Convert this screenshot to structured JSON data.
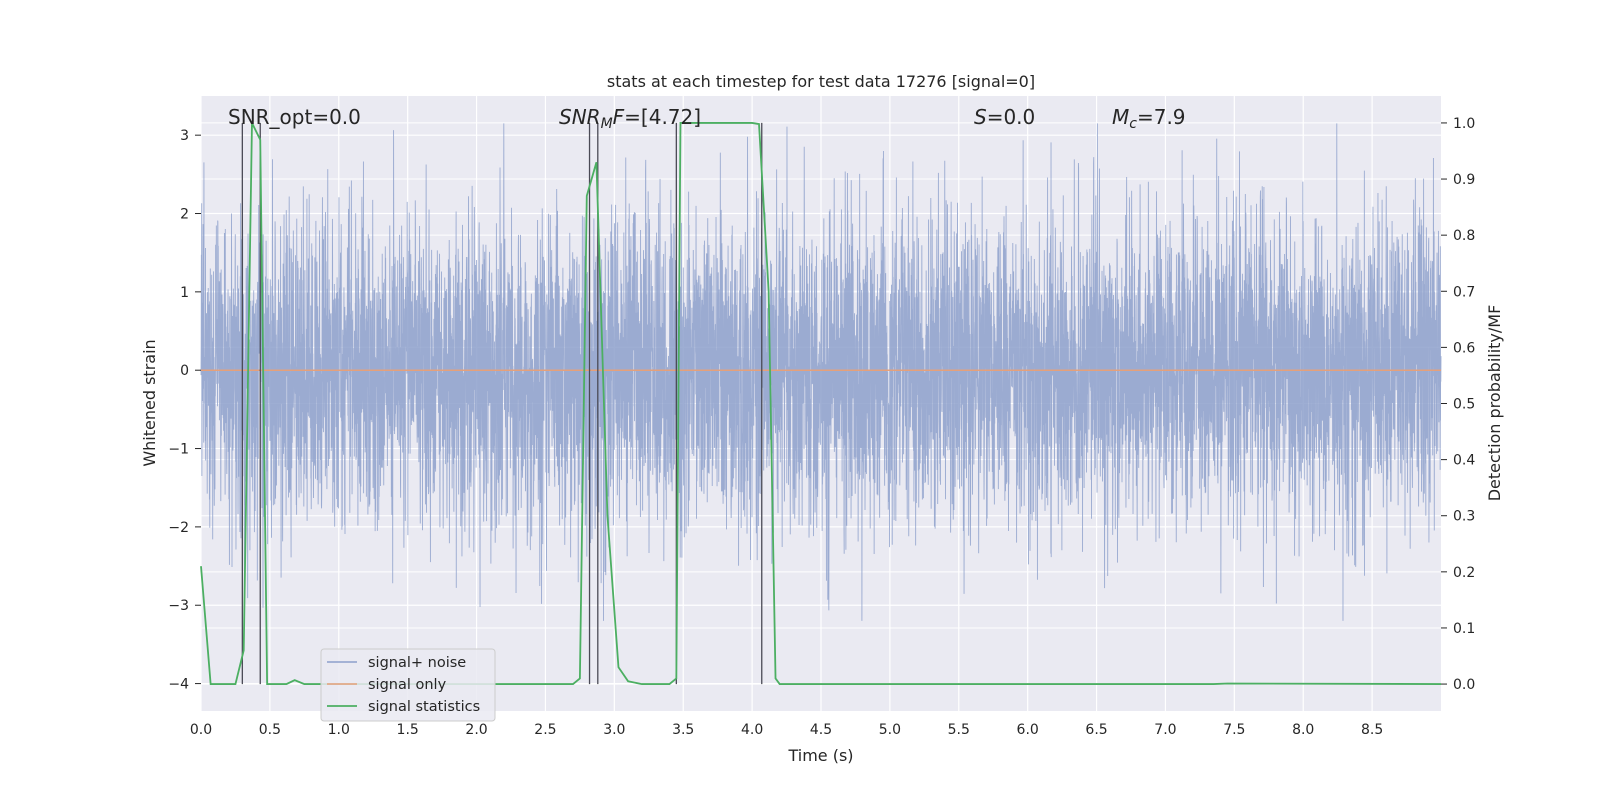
{
  "chart_data": {
    "type": "line",
    "title": "stats at each timestep for test data 17276 [signal=0]",
    "xlabel": "Time (s)",
    "ylabel": "Whitened strain",
    "y2label": "Detection probability/MF",
    "xlim": [
      0.0,
      9.0
    ],
    "ylim": [
      -4.35,
      3.5
    ],
    "y2lim": [
      -0.048,
      1.048
    ],
    "x_ticks": [
      "0.0",
      "0.5",
      "1.0",
      "1.5",
      "2.0",
      "2.5",
      "3.0",
      "3.5",
      "4.0",
      "4.5",
      "5.0",
      "5.5",
      "6.0",
      "6.5",
      "7.0",
      "7.5",
      "8.0",
      "8.5"
    ],
    "y_ticks": [
      "−4",
      "−3",
      "−2",
      "−1",
      "0",
      "1",
      "2",
      "3"
    ],
    "y2_ticks": [
      "0.0",
      "0.1",
      "0.2",
      "0.3",
      "0.4",
      "0.5",
      "0.6",
      "0.7",
      "0.8",
      "0.9",
      "1.0"
    ],
    "grid": true,
    "legend_position": "lower-left",
    "series": [
      {
        "name": "signal+ noise",
        "color": "#8da0cb",
        "style": "dense noise, std ≈ 1, range ≈ ±3"
      },
      {
        "name": "signal only",
        "color": "#e5a07a",
        "x": [
          0.0,
          9.0
        ],
        "values": [
          0.0,
          0.0
        ]
      },
      {
        "name": "signal statistics",
        "color": "#4caf62",
        "axis": "right",
        "x": [
          0.0,
          0.07,
          0.25,
          0.31,
          0.37,
          0.43,
          0.48,
          0.5,
          0.62,
          0.68,
          0.75,
          0.85,
          2.7,
          2.75,
          2.8,
          2.87,
          2.95,
          3.03,
          3.1,
          3.2,
          3.4,
          3.45,
          3.48,
          3.52,
          4.0,
          4.05,
          4.12,
          4.17,
          4.2,
          7.35,
          7.45,
          9.0
        ],
        "values": [
          0.21,
          0.0,
          0.0,
          0.06,
          1.0,
          0.97,
          0.0,
          0.0,
          0.0,
          0.007,
          0.0,
          0.0,
          0.0,
          0.01,
          0.87,
          0.93,
          0.3,
          0.03,
          0.005,
          0.0,
          0.0,
          0.01,
          1.0,
          1.0,
          1.0,
          0.998,
          0.7,
          0.01,
          0.0,
          0.0,
          0.001,
          0.0
        ]
      }
    ],
    "vertical_markers": [
      0.3,
      0.43,
      2.82,
      2.88,
      3.45,
      4.07
    ],
    "annotations": [
      {
        "id": "snr-opt",
        "text": "SNR_opt=0.0",
        "x": 0.2
      },
      {
        "id": "snr-mf",
        "text": "[4.72]",
        "x": 2.6
      },
      {
        "id": "s",
        "text": "=0.0",
        "x": 5.6
      },
      {
        "id": "mc",
        "text": "=7.9",
        "x": 6.6
      }
    ]
  },
  "annotation_parts": {
    "snr_mf_prefix": "SNR",
    "snr_mf_sub": "M",
    "snr_mf_mid": "F=",
    "s_symbol": "S",
    "mc_symbol": "M",
    "mc_sub": "c"
  },
  "colors": {
    "plot_bg": "#eaeaf2",
    "grid": "#ffffff",
    "noise": "#8da0cb",
    "signal": "#e5a07a",
    "stats": "#4caf62",
    "marker": "#4a4a55"
  }
}
